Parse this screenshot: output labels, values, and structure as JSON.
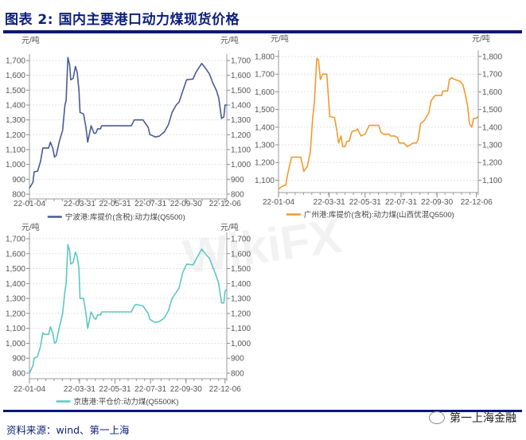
{
  "header": {
    "title": "图表 2: 国内主要港口动力煤现货价格"
  },
  "footer": {
    "source": "资料来源：wind、第一上海",
    "watermark": "第一上海金融",
    "background_watermark": "WikiFX"
  },
  "chart_data": [
    {
      "type": "line",
      "unit_left": "元/吨",
      "unit_right": "元/吨",
      "ylim": [
        800,
        1700
      ],
      "yticks": [
        800,
        900,
        1000,
        1100,
        1200,
        1300,
        1400,
        1500,
        1600,
        1700
      ],
      "ytick_labels": [
        "800",
        "900",
        "1,000",
        "1,100",
        "1,200",
        "1,300",
        "1,400",
        "1,500",
        "1,600",
        "1,700"
      ],
      "xlim": [
        "22-01-04",
        "22-12-09"
      ],
      "xticks": [
        "22-01-04",
        "22-03-31",
        "22-05-31",
        "22-07-31",
        "22-09-30",
        "22-12-06"
      ],
      "grid": true,
      "legend": "bottom",
      "series": [
        {
          "name": "宁波港:库提价(含税):动力煤(Q5500)",
          "color": "#4a5a96",
          "x": [
            "22-01-04",
            "22-01-10",
            "22-01-12",
            "22-01-18",
            "22-01-20",
            "22-01-23",
            "22-01-27",
            "22-01-30",
            "22-02-06",
            "22-02-09",
            "22-02-13",
            "22-02-16",
            "22-02-19",
            "22-02-24",
            "22-03-02",
            "22-03-06",
            "22-03-08",
            "22-03-11",
            "22-03-14",
            "22-03-16",
            "22-03-20",
            "22-03-24",
            "22-03-27",
            "22-03-30",
            "22-04-01",
            "22-04-07",
            "22-04-11",
            "22-04-14",
            "22-04-20",
            "22-04-25",
            "22-04-28",
            "22-05-01",
            "22-05-06",
            "22-05-08",
            "22-06-28",
            "22-07-03",
            "22-07-06",
            "22-07-18",
            "22-07-27",
            "22-07-30",
            "22-08-03",
            "22-08-08",
            "22-08-15",
            "22-08-24",
            "22-08-31",
            "22-09-06",
            "22-09-13",
            "22-09-18",
            "22-09-24",
            "22-10-01",
            "22-10-12",
            "22-10-17",
            "22-10-27",
            "22-11-02",
            "22-11-09",
            "22-11-15",
            "22-11-21",
            "22-11-25",
            "22-11-30",
            "22-12-04",
            "22-12-06",
            "22-12-09"
          ],
          "y": [
            840,
            880,
            950,
            955,
            980,
            1020,
            1110,
            1110,
            1110,
            1150,
            1110,
            1050,
            1060,
            1150,
            1230,
            1400,
            1430,
            1720,
            1670,
            1570,
            1580,
            1660,
            1620,
            1500,
            1350,
            1340,
            1250,
            1150,
            1260,
            1210,
            1210,
            1240,
            1240,
            1260,
            1260,
            1300,
            1300,
            1300,
            1250,
            1200,
            1195,
            1185,
            1190,
            1220,
            1270,
            1350,
            1400,
            1420,
            1490,
            1570,
            1575,
            1620,
            1680,
            1650,
            1610,
            1550,
            1500,
            1450,
            1310,
            1320,
            1400,
            1400
          ]
        }
      ]
    },
    {
      "type": "line",
      "unit_left": "元/吨",
      "unit_right": "元/吨",
      "ylim": [
        1030,
        1800
      ],
      "yticks": [
        1100,
        1200,
        1300,
        1400,
        1500,
        1600,
        1700,
        1800
      ],
      "ytick_labels": [
        "1,100",
        "1,200",
        "1,300",
        "1,400",
        "1,500",
        "1,600",
        "1,700",
        "1,800"
      ],
      "xlim": [
        "22-01-04",
        "22-12-09"
      ],
      "xticks": [
        "22-01-04",
        "22-03-31",
        "22-05-31",
        "22-07-31",
        "22-09-30",
        "22-12-06"
      ],
      "grid": true,
      "legend": "bottom",
      "series": [
        {
          "name": "广州港:库提价(含税):动力煤(山西优混Q5500)",
          "color": "#f39a2e",
          "x": [
            "22-01-04",
            "22-01-08",
            "22-01-13",
            "22-01-16",
            "22-01-20",
            "22-01-26",
            "22-02-11",
            "22-02-16",
            "22-02-22",
            "22-02-27",
            "22-03-03",
            "22-03-06",
            "22-03-10",
            "22-03-13",
            "22-03-16",
            "22-03-20",
            "22-03-27",
            "22-04-01",
            "22-04-09",
            "22-04-13",
            "22-04-16",
            "22-04-20",
            "22-04-23",
            "22-04-27",
            "22-04-30",
            "22-05-04",
            "22-05-08",
            "22-05-11",
            "22-05-15",
            "22-05-18",
            "22-05-24",
            "22-05-31",
            "22-06-07",
            "22-06-23",
            "22-06-27",
            "22-07-02",
            "22-07-11",
            "22-07-13",
            "22-07-20",
            "22-07-25",
            "22-07-28",
            "22-08-05",
            "22-08-10",
            "22-08-16",
            "22-08-20",
            "22-08-26",
            "22-08-29",
            "22-09-02",
            "22-09-09",
            "22-09-16",
            "22-09-20",
            "22-09-27",
            "22-10-08",
            "22-10-10",
            "22-10-18",
            "22-10-21",
            "22-10-25",
            "22-10-30",
            "22-11-08",
            "22-11-13",
            "22-11-16",
            "22-11-21",
            "22-11-24",
            "22-11-28",
            "22-12-01",
            "22-12-06",
            "22-12-08"
          ],
          "y": [
            1050,
            1060,
            1070,
            1070,
            1140,
            1230,
            1230,
            1150,
            1180,
            1260,
            1450,
            1550,
            1790,
            1780,
            1670,
            1700,
            1700,
            1460,
            1455,
            1380,
            1310,
            1350,
            1290,
            1290,
            1320,
            1320,
            1370,
            1380,
            1380,
            1390,
            1350,
            1360,
            1410,
            1410,
            1370,
            1360,
            1360,
            1350,
            1350,
            1340,
            1310,
            1310,
            1290,
            1300,
            1310,
            1310,
            1330,
            1420,
            1440,
            1480,
            1550,
            1580,
            1580,
            1605,
            1605,
            1670,
            1680,
            1670,
            1660,
            1640,
            1600,
            1520,
            1420,
            1400,
            1450,
            1450,
            1460
          ]
        }
      ]
    },
    {
      "type": "line",
      "unit_left": "元/吨",
      "unit_right": "元/吨",
      "ylim": [
        800,
        1700
      ],
      "yticks": [
        800,
        900,
        1000,
        1100,
        1200,
        1300,
        1400,
        1500,
        1600,
        1700
      ],
      "ytick_labels": [
        "800",
        "900",
        "1,000",
        "1,100",
        "1,200",
        "1,300",
        "1,400",
        "1,500",
        "1,600",
        "1,700"
      ],
      "xlim": [
        "22-01-04",
        "22-12-09"
      ],
      "xticks": [
        "22-01-04",
        "22-03-31",
        "22-05-31",
        "22-07-31",
        "22-09-30",
        "22-12-06"
      ],
      "grid": true,
      "legend": "bottom",
      "series": [
        {
          "name": "京唐港:平仓价:动力煤(Q5500K)",
          "color": "#5cc8c0",
          "x": [
            "22-01-04",
            "22-01-10",
            "22-01-12",
            "22-01-18",
            "22-01-20",
            "22-01-23",
            "22-01-27",
            "22-01-30",
            "22-02-06",
            "22-02-09",
            "22-02-13",
            "22-02-16",
            "22-02-19",
            "22-02-24",
            "22-03-02",
            "22-03-06",
            "22-03-08",
            "22-03-11",
            "22-03-14",
            "22-03-16",
            "22-03-20",
            "22-03-24",
            "22-03-27",
            "22-03-30",
            "22-04-01",
            "22-04-07",
            "22-04-11",
            "22-04-14",
            "22-04-20",
            "22-04-25",
            "22-04-28",
            "22-05-01",
            "22-05-06",
            "22-05-08",
            "22-06-28",
            "22-07-03",
            "22-07-06",
            "22-07-18",
            "22-07-27",
            "22-07-30",
            "22-08-03",
            "22-08-08",
            "22-08-15",
            "22-08-24",
            "22-08-31",
            "22-09-06",
            "22-09-13",
            "22-09-18",
            "22-09-24",
            "22-10-01",
            "22-10-12",
            "22-10-17",
            "22-10-27",
            "22-11-02",
            "22-11-09",
            "22-11-15",
            "22-11-21",
            "22-11-25",
            "22-11-30",
            "22-12-04",
            "22-12-06",
            "22-12-09"
          ],
          "y": [
            800,
            850,
            900,
            910,
            940,
            980,
            1070,
            1060,
            1060,
            1110,
            1070,
            1000,
            1010,
            1100,
            1200,
            1350,
            1400,
            1660,
            1620,
            1530,
            1540,
            1610,
            1580,
            1500,
            1300,
            1300,
            1200,
            1100,
            1210,
            1170,
            1160,
            1190,
            1190,
            1210,
            1210,
            1250,
            1260,
            1250,
            1200,
            1160,
            1150,
            1140,
            1145,
            1170,
            1220,
            1300,
            1340,
            1370,
            1470,
            1530,
            1525,
            1560,
            1630,
            1600,
            1570,
            1510,
            1450,
            1400,
            1270,
            1270,
            1350,
            1360
          ]
        }
      ]
    }
  ]
}
